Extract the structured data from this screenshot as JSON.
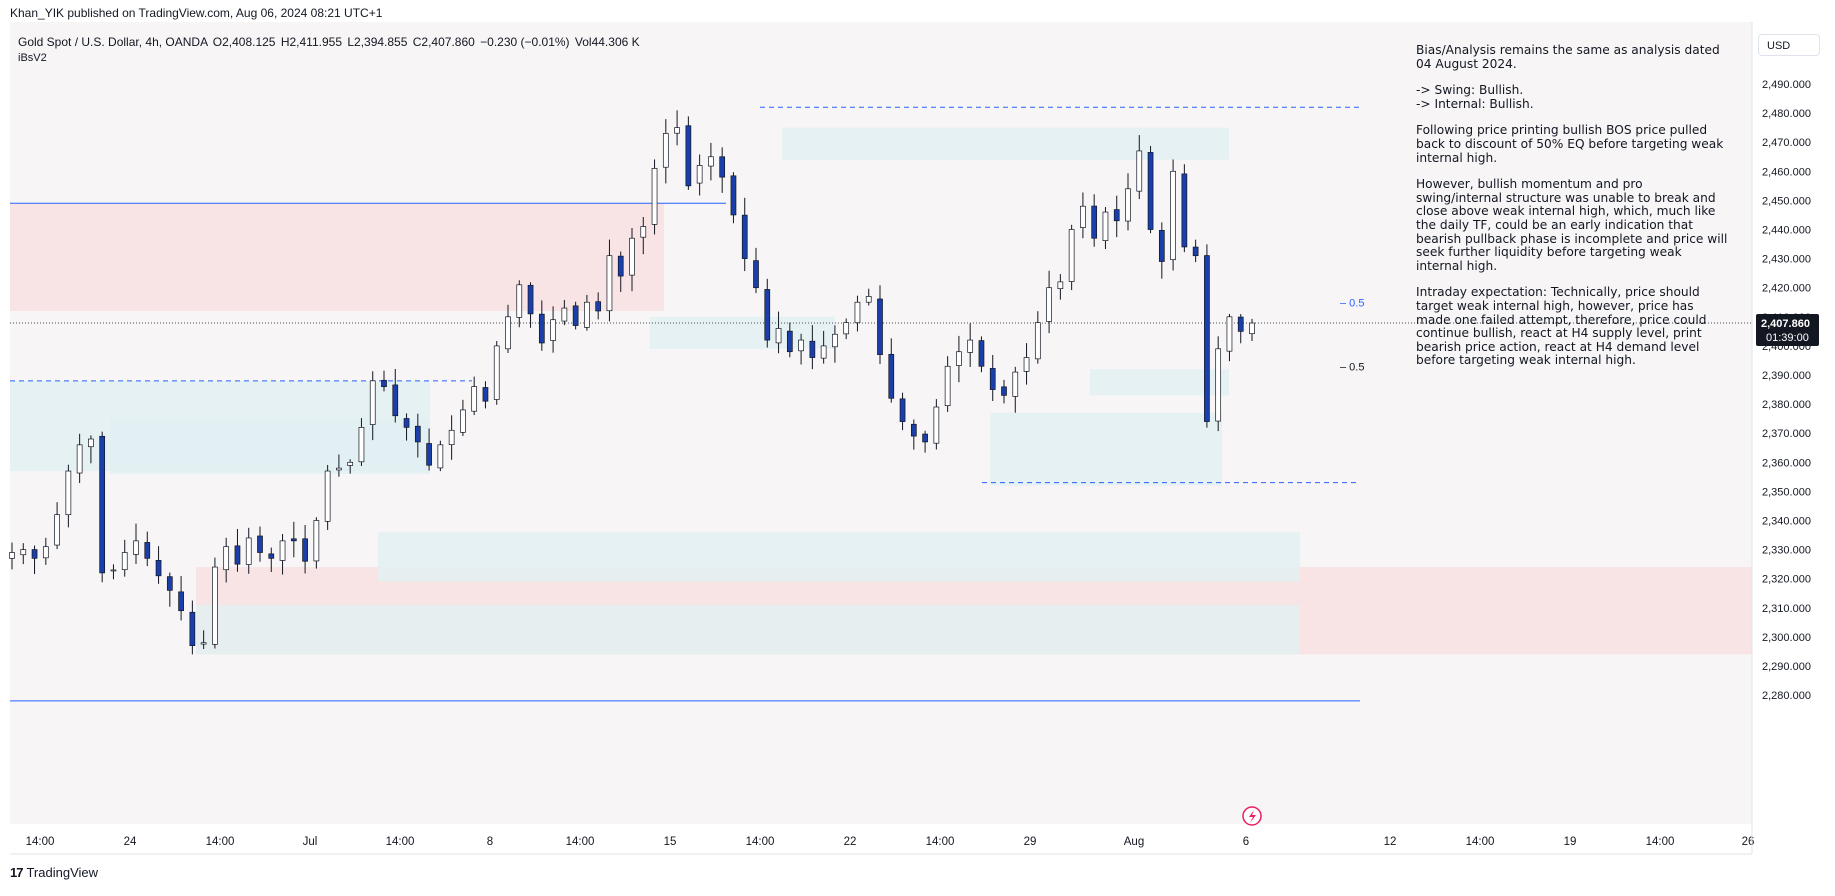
{
  "header": {
    "published": "Khan_YIK published on TradingView.com, Aug 06, 2024 08:21 UTC+1"
  },
  "legend": {
    "symbol": "Gold Spot / U.S. Dollar, 4h, OANDA",
    "open": "O2,408.125",
    "high": "H2,411.955",
    "low": "L2,394.855",
    "close": "C2,407.860",
    "change": "−0.230 (−0.01%)",
    "volume": "Vol44.306 K"
  },
  "indicator": "iBsV2",
  "currency_button": "USD",
  "price_tag": {
    "price": "2,407.860",
    "countdown": "01:39:00"
  },
  "analysis": {
    "p1": "Bias/Analysis remains the same as analysis dated 04 August 2024.",
    "p2a": "-> Swing:  Bullish.",
    "p2b": "-> Internal:  Bullish.",
    "p3": "Following price printing bullish BOS price pulled back to discount of 50% EQ before targeting weak internal high.",
    "p4": "However, bullish momentum and pro swing/internal structure was unable to break and close above weak internal high, which, much like the daily TF, could be an early indication that bearish pullback phase is incomplete and price will seek further liquidity before targeting weak internal high.",
    "p5": "Intraday expectation: Technically, price should target weak internal high, however, price has made one failed attempt, therefore, price could  continue bullish, react at H4 supply level, print bearish price action, react at H4 demand level before targeting weak internal high."
  },
  "footer": {
    "brand": "TradingView"
  },
  "chart_data": {
    "type": "candlestick",
    "instrument": "Gold Spot / U.S. Dollar",
    "timeframe": "4h",
    "y_ticks": [
      2490,
      2480,
      2470,
      2460,
      2450,
      2440,
      2430,
      2420,
      2410,
      2400,
      2390,
      2380,
      2370,
      2360,
      2350,
      2340,
      2330,
      2320,
      2310,
      2300,
      2290,
      2280
    ],
    "y_tick_labels": [
      "2,490.000",
      "2,480.000",
      "2,470.000",
      "2,460.000",
      "2,450.000",
      "2,440.000",
      "2,430.000",
      "2,420.000",
      "2,410.000",
      "2,400.000",
      "2,390.000",
      "2,380.000",
      "2,370.000",
      "2,360.000",
      "2,350.000",
      "2,340.000",
      "2,330.000",
      "2,320.000",
      "2,310.000",
      "2,300.000",
      "2,290.000",
      "2,280.000"
    ],
    "ylim": [
      2276,
      2497
    ],
    "x_tick_labels": [
      "14:00",
      "24",
      "14:00",
      "Jul",
      "14:00",
      "8",
      "14:00",
      "15",
      "14:00",
      "22",
      "14:00",
      "29",
      "14:00",
      "Aug",
      "6",
      "12",
      "14:00",
      "19",
      "14:00",
      "26"
    ],
    "last_price": 2407.86,
    "close_path": [
      2329,
      2330,
      2327,
      2331,
      2342,
      2357,
      2366,
      2368,
      2322,
      2323,
      2329,
      2333,
      2327,
      2321,
      2316,
      2309,
      2297,
      2298,
      2324,
      2331,
      2325,
      2334,
      2329,
      2327,
      2333,
      2333,
      2326,
      2340,
      2357,
      2358,
      2360,
      2372,
      2388,
      2386,
      2376,
      2372,
      2367,
      2359,
      2366,
      2371,
      2378,
      2386,
      2381,
      2400,
      2410,
      2421,
      2411,
      2401,
      2409,
      2413,
      2407,
      2415,
      2412,
      2431,
      2424,
      2437,
      2441,
      2461,
      2473,
      2475,
      2455,
      2462,
      2465,
      2458,
      2445,
      2430,
      2420,
      2402,
      2406,
      2398,
      2402,
      2396,
      2400,
      2404,
      2408,
      2415,
      2417,
      2397,
      2382,
      2374,
      2369,
      2367,
      2379,
      2393,
      2398,
      2402,
      2393,
      2385,
      2383,
      2391,
      2396,
      2408,
      2420,
      2422,
      2440,
      2448,
      2437,
      2446,
      2443,
      2454,
      2467,
      2440,
      2429,
      2460,
      2434,
      2431,
      2374,
      2399,
      2410,
      2405,
      2407.86
    ],
    "zones": [
      {
        "kind": "supply",
        "from": 2412,
        "to": 2449
      },
      {
        "kind": "supply",
        "from": 2294,
        "to": 2324
      },
      {
        "kind": "demand",
        "from": 2410,
        "to": 2399
      },
      {
        "kind": "demand",
        "from": 2357,
        "to": 2388
      },
      {
        "kind": "demand",
        "from": 2356,
        "to": 2375
      },
      {
        "kind": "demand",
        "from": 2319,
        "to": 2336
      },
      {
        "kind": "demand",
        "from": 2294,
        "to": 2311
      },
      {
        "kind": "demand",
        "from": 2464,
        "to": 2475
      },
      {
        "kind": "demand",
        "from": 2383,
        "to": 2392
      },
      {
        "kind": "demand",
        "from": 2352,
        "to": 2377
      }
    ],
    "levels": [
      {
        "kind": "solid",
        "price": 2449
      },
      {
        "kind": "dashed",
        "price": 2482
      },
      {
        "kind": "dashed",
        "price": 2388
      },
      {
        "kind": "dashed",
        "price": 2353
      },
      {
        "kind": "solid",
        "price": 2278
      }
    ],
    "labels": [
      {
        "text": "0.5",
        "price": 2415
      },
      {
        "text": "0.5",
        "price": 2393
      }
    ],
    "grid": false
  },
  "colors": {
    "up_body": "#ffffff",
    "down_body": "#1a3faa",
    "wick": "#131722",
    "supply_zone": "#f8e0e0",
    "demand_zone": "#e1f0f2",
    "level_line": "#2962ff",
    "price_tag_bg": "#131722"
  }
}
